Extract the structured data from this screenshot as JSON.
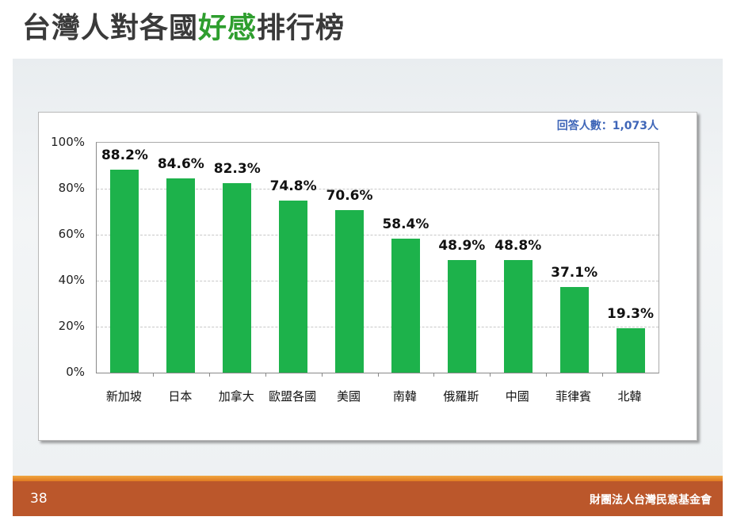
{
  "title": {
    "prefix": "台灣人對各國",
    "highlight": "好感",
    "suffix": "排行榜"
  },
  "respondents_label": "回答人數：1,073人",
  "footer": {
    "page_number": "38",
    "organization": "財團法人台灣民意基金會"
  },
  "colors": {
    "bar": "#1db24b",
    "title_highlight": "#2e9e2e",
    "respondents": "#3f66b8",
    "footer": "#bb572b"
  },
  "chart_data": {
    "type": "bar",
    "title": "台灣人對各國好感排行榜",
    "subtitle": "回答人數：1,073人",
    "xlabel": "",
    "ylabel": "",
    "categories": [
      "新加坡",
      "日本",
      "加拿大",
      "歐盟各國",
      "美國",
      "南韓",
      "俄羅斯",
      "中國",
      "菲律賓",
      "北韓"
    ],
    "values": [
      88.2,
      84.6,
      82.3,
      74.8,
      70.6,
      58.4,
      48.9,
      48.8,
      37.1,
      19.3
    ],
    "value_labels": [
      "88.2%",
      "84.6%",
      "82.3%",
      "74.8%",
      "70.6%",
      "58.4%",
      "48.9%",
      "48.8%",
      "37.1%",
      "19.3%"
    ],
    "yticks": [
      "0%",
      "20%",
      "40%",
      "60%",
      "80%",
      "100%"
    ],
    "ylim": [
      0,
      100
    ],
    "grid": true,
    "legend": "none"
  }
}
